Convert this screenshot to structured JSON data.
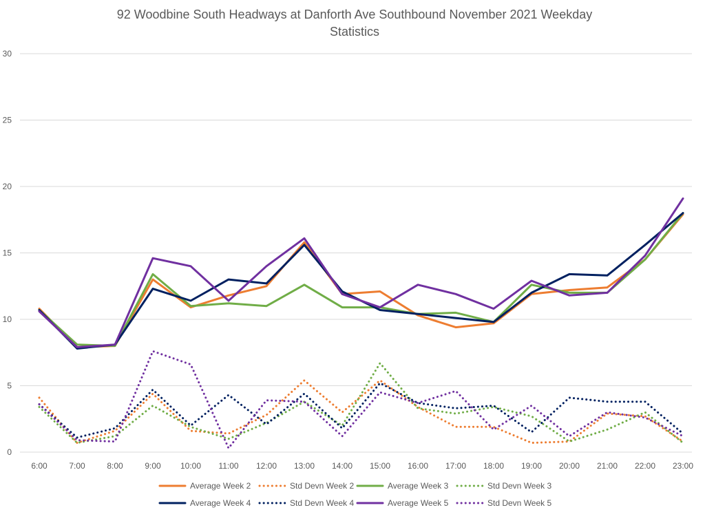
{
  "chart_data": {
    "type": "line",
    "title_lines": [
      "92 Woodbine South Headways at Danforth Ave Southbound November 2021 Weekday",
      "Statistics"
    ],
    "xlabel": "",
    "ylabel": "",
    "ylim": [
      0,
      30
    ],
    "yticks": [
      0,
      5,
      10,
      15,
      20,
      25,
      30
    ],
    "grid": true,
    "legend_position": "bottom",
    "categories": [
      "6:00",
      "7:00",
      "8:00",
      "9:00",
      "10:00",
      "11:00",
      "12:00",
      "13:00",
      "14:00",
      "15:00",
      "16:00",
      "17:00",
      "18:00",
      "19:00",
      "20:00",
      "21:00",
      "22:00",
      "23:00"
    ],
    "series": [
      {
        "name": "Average Week 2",
        "color": "#ED7D31",
        "style": "solid",
        "values": [
          10.8,
          7.9,
          8.0,
          13.0,
          10.9,
          11.8,
          12.5,
          15.8,
          11.9,
          12.1,
          10.3,
          9.4,
          9.7,
          11.9,
          12.2,
          12.4,
          14.5,
          17.9
        ]
      },
      {
        "name": "Std Devn Week 2",
        "color": "#ED7D31",
        "style": "dotted",
        "values": [
          4.1,
          0.7,
          1.6,
          4.4,
          1.6,
          1.4,
          2.8,
          5.4,
          3.0,
          5.4,
          3.4,
          1.9,
          1.9,
          0.7,
          0.8,
          2.9,
          2.7,
          0.8
        ]
      },
      {
        "name": "Average Week 3",
        "color": "#70AD47",
        "style": "solid",
        "values": [
          10.7,
          8.1,
          8.0,
          13.4,
          11.0,
          11.2,
          11.0,
          12.6,
          10.9,
          10.9,
          10.4,
          10.5,
          9.8,
          12.6,
          12.0,
          12.0,
          14.5,
          18.0
        ]
      },
      {
        "name": "Std Devn Week 3",
        "color": "#70AD47",
        "style": "dotted",
        "values": [
          3.4,
          0.7,
          1.2,
          3.5,
          1.9,
          1.0,
          2.2,
          3.8,
          2.0,
          6.7,
          3.3,
          2.9,
          3.4,
          2.7,
          0.8,
          1.7,
          3.0,
          0.7
        ]
      },
      {
        "name": "Average Week 4",
        "color": "#002060",
        "style": "solid",
        "values": [
          10.7,
          7.8,
          8.1,
          12.3,
          11.4,
          13.0,
          12.7,
          15.6,
          12.1,
          10.7,
          10.4,
          10.1,
          9.8,
          12.0,
          13.4,
          13.3,
          15.6,
          18.0
        ]
      },
      {
        "name": "Std Devn Week 4",
        "color": "#002060",
        "style": "dotted",
        "values": [
          3.6,
          1.1,
          1.8,
          4.7,
          2.0,
          4.3,
          2.1,
          4.4,
          1.8,
          5.2,
          3.7,
          3.3,
          3.5,
          1.5,
          4.1,
          3.8,
          3.8,
          1.4
        ]
      },
      {
        "name": "Average Week 5",
        "color": "#7030A0",
        "style": "solid",
        "values": [
          10.6,
          7.9,
          8.1,
          14.6,
          14.0,
          11.4,
          14.0,
          16.1,
          11.9,
          10.9,
          12.6,
          11.9,
          10.8,
          12.9,
          11.8,
          12.0,
          14.8,
          19.1
        ]
      },
      {
        "name": "Std Devn Week 5",
        "color": "#7030A0",
        "style": "dotted",
        "values": [
          3.6,
          0.9,
          0.8,
          7.6,
          6.6,
          0.3,
          3.9,
          3.8,
          1.2,
          4.5,
          3.7,
          4.6,
          1.7,
          3.5,
          1.2,
          3.0,
          2.6,
          1.2
        ]
      }
    ]
  }
}
